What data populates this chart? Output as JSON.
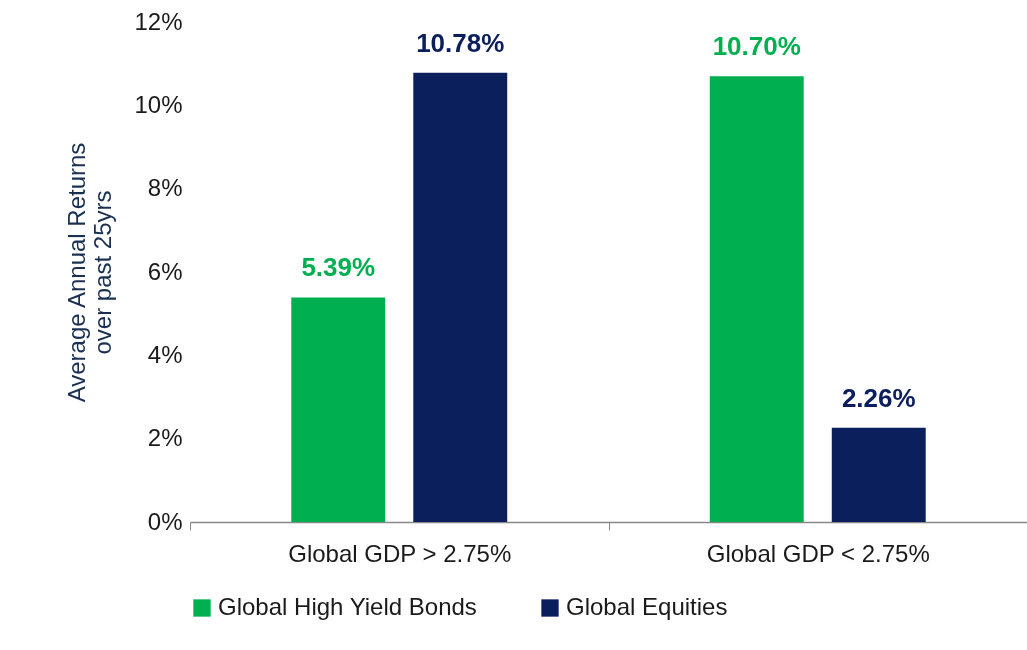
{
  "chart_data": {
    "type": "bar",
    "ylabel": "Average Annual Returns over past 25yrs",
    "categories": [
      "Global GDP > 2.75%",
      "Global GDP < 2.75%"
    ],
    "series": [
      {
        "name": "Global High Yield Bonds",
        "color": "#00b050",
        "values": [
          5.39,
          10.7
        ],
        "value_labels": [
          "5.39%",
          "10.70%"
        ]
      },
      {
        "name": "Global Equities",
        "color": "#0b1f5c",
        "values": [
          10.78,
          2.26
        ],
        "value_labels": [
          "10.78%",
          "2.26%"
        ]
      }
    ],
    "ylim": [
      0,
      12
    ],
    "yticks": [
      {
        "value": 0,
        "label": "0%"
      },
      {
        "value": 2,
        "label": "2%"
      },
      {
        "value": 4,
        "label": "4%"
      },
      {
        "value": 6,
        "label": "6%"
      },
      {
        "value": 8,
        "label": "8%"
      },
      {
        "value": 10,
        "label": "10%"
      },
      {
        "value": 12,
        "label": "12%"
      }
    ],
    "grid": false,
    "legend": "bottom"
  }
}
